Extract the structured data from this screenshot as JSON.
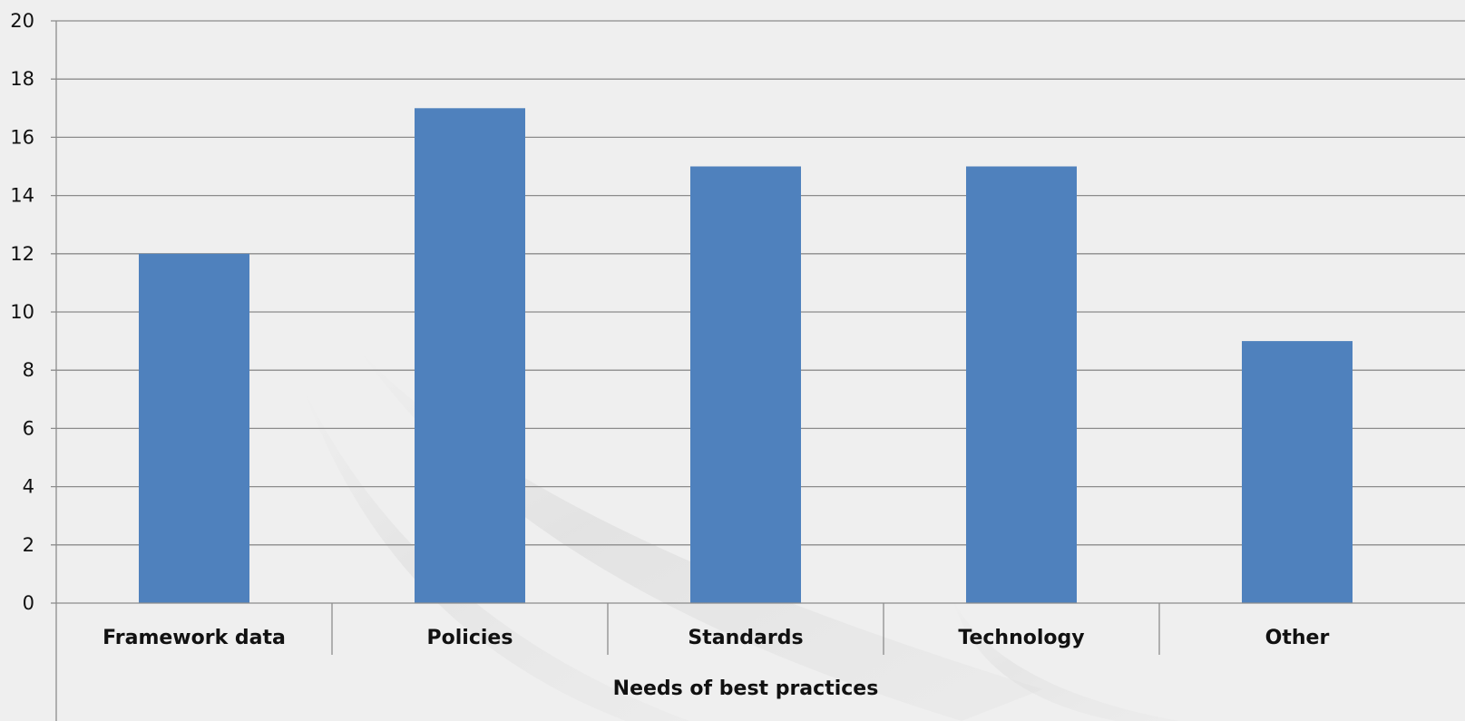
{
  "chart_data": {
    "type": "bar",
    "categories": [
      "Framework data",
      "Policies",
      "Standards",
      "Technology",
      "Other"
    ],
    "values": [
      12,
      17,
      15,
      15,
      9
    ],
    "title": "",
    "xlabel": "Needs of best practices",
    "ylabel": "",
    "ylim": [
      0,
      20
    ],
    "yticks": [
      "0",
      "2",
      "4",
      "6",
      "8",
      "10",
      "12",
      "14",
      "16",
      "18",
      "20"
    ],
    "grid": true,
    "bar_color": "#4f81bd",
    "background_color": "#efefef",
    "gridline_color": "#8c8c8c"
  }
}
